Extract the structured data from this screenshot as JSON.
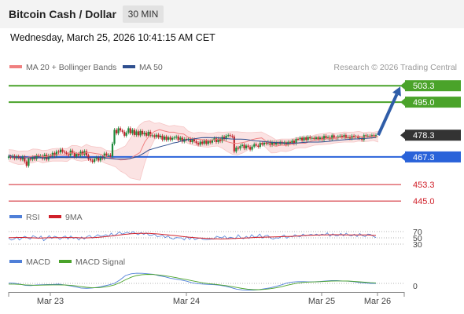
{
  "header": {
    "title": "Bitcoin Cash / Dollar",
    "timeframe": "30 MIN"
  },
  "datetime": "Wednesday, March 25, 2026 10:41:15 AM CET",
  "legend": {
    "ma20_label": "MA 20 + Bollinger Bands",
    "ma50_label": "MA 50",
    "credit": "Research © 2026 Trading Central",
    "rsi_label": "RSI",
    "rsi_ma_label": "9MA",
    "macd_label": "MACD",
    "macd_signal_label": "MACD Signal"
  },
  "colors": {
    "ma20": "#f08080",
    "ma50": "#2f4f8f",
    "bb_fill": "#fbe3e3",
    "bull_candle": "#1e8a3c",
    "bear_candle": "#c0262d",
    "target_line": "#4aa32a",
    "pivot_line": "#2962d9",
    "support_line": "#e8828a",
    "arrow": "#2f5da8",
    "rsi": "#4f7fd8",
    "rsi_ma": "#d0202a",
    "macd": "#4f7fd8",
    "macd_signal": "#4aa32a",
    "current_price_badge": "#333333"
  },
  "chart_data": [
    {
      "type": "candlestick",
      "title": "Bitcoin Cash / Dollar",
      "interval": "30 MIN",
      "x_ticks": [
        "Mar 23",
        "Mar 24",
        "Mar 25",
        "Mar 26"
      ],
      "ylim": [
        440,
        508
      ],
      "price_levels": [
        {
          "value": 503.3,
          "label": "503.3",
          "role": "target",
          "color": "#4aa32a"
        },
        {
          "value": 495.0,
          "label": "495.0",
          "role": "target",
          "color": "#4aa32a"
        },
        {
          "value": 478.3,
          "label": "478.3",
          "role": "current",
          "color": "#333333"
        },
        {
          "value": 467.3,
          "label": "467.3",
          "role": "pivot",
          "color": "#2962d9"
        },
        {
          "value": 453.3,
          "label": "453.3",
          "role": "support",
          "color": "#d0202a"
        },
        {
          "value": 445.0,
          "label": "445.0",
          "role": "support",
          "color": "#d0202a"
        }
      ],
      "close": [
        467.5,
        467.0,
        467.8,
        466.5,
        467.6,
        466.9,
        466.0,
        467.4,
        465.0,
        462.8,
        466.5,
        466.0,
        467.2,
        466.2,
        468.0,
        467.5,
        467.8,
        466.4,
        468.4,
        466.0,
        468.0,
        467.5,
        469.3,
        467.9,
        470.0,
        469.6,
        471.0,
        469.9,
        469.5,
        468.8,
        468.0,
        470.5,
        469.2,
        467.4,
        468.8,
        468.0,
        470.0,
        468.5,
        470.2,
        468.1,
        466.2,
        465.5,
        464.8,
        466.3,
        467.0,
        465.5,
        467.2,
        466.5,
        469.0,
        468.0,
        468.3,
        467.6,
        474.0,
        481.0,
        479.2,
        481.8,
        480.7,
        480.0,
        478.0,
        479.6,
        481.8,
        479.2,
        481.0,
        478.4,
        480.2,
        478.2,
        480.4,
        478.7,
        479.5,
        478.0,
        480.0,
        478.0,
        478.2,
        477.4,
        478.5,
        477.2,
        478.0,
        476.0,
        477.6,
        475.9,
        477.2,
        476.0,
        476.9,
        477.1,
        477.6,
        475.9,
        477.0,
        475.0,
        476.4,
        476.0,
        476.5,
        474.8,
        476.2,
        475.2,
        474.3,
        473.5,
        475.0,
        474.0,
        475.5,
        473.9,
        475.3,
        474.5,
        475.7,
        476.7,
        474.8,
        476.5,
        475.2,
        477.5,
        476.3,
        478.0,
        478.3,
        477.9,
        477.6,
        470.0,
        472.0,
        471.5,
        472.8,
        473.4,
        471.6,
        473.0,
        472.3,
        471.0,
        472.5,
        473.7,
        473.0,
        472.4,
        474.3,
        473.5,
        474.5,
        474.0,
        475.0,
        473.2,
        474.8,
        473.6,
        474.7,
        473.8,
        474.9,
        473.9,
        474.7,
        473.5,
        474.9,
        474.4,
        475.5,
        474.0,
        476.4,
        476.2,
        477.0,
        475.6,
        477.2,
        475.9,
        477.4,
        476.6,
        476.9,
        476.3,
        477.2,
        476.2,
        477.1,
        475.9,
        477.9,
        476.8,
        477.3,
        476.2,
        478.2,
        477.0,
        476.8,
        477.6,
        478.0,
        477.3,
        478.3,
        476.8,
        477.5,
        476.6,
        478.0,
        477.3,
        477.6,
        476.8,
        476.9,
        475.9,
        478.3,
        477.9,
        478.0,
        477.5,
        478.3,
        477.7,
        478.3
      ],
      "ma20": [
        468,
        467.3,
        466.8,
        466.9,
        467.2,
        467.7,
        468.1,
        467.3,
        467.6,
        468.2,
        468.4,
        468.3,
        468.2,
        469.7,
        469.2,
        468.7,
        469.6,
        469.4,
        468.9,
        468.6,
        467.3,
        466.8,
        466.3,
        465.8,
        465.9,
        466.4,
        468,
        469.5,
        474.9,
        478.3,
        480.2,
        481.1,
        480.4,
        479.8,
        479.8,
        479.1,
        478.9,
        477.1,
        476.4,
        476.2,
        476,
        475.7,
        475.9,
        476.3,
        475.7,
        474.9,
        474.3,
        474.1,
        474.5,
        475,
        476,
        476.6,
        476.9,
        475.2,
        473.4,
        472.7,
        473.3,
        473.1,
        473.5,
        474.2,
        474.3,
        474.2,
        475.1,
        475.8,
        476.1,
        476.4,
        476.8,
        476.7,
        477.1,
        477.3,
        477.3,
        477.3,
        477.8,
        477.3,
        477.5,
        477.7,
        477.5
      ],
      "ma50": [
        468.3,
        467.3,
        466.9,
        466.9,
        466.8,
        466.8,
        466.8,
        466.8,
        466.8,
        466.8,
        466.9,
        467,
        466.9,
        467,
        467,
        466.9,
        466.9,
        466.9,
        467,
        467,
        466.7,
        466.5,
        466.2,
        466.2,
        466.2,
        466.4,
        467,
        467.8,
        469.2,
        470.8,
        471.5,
        472.2,
        472.9,
        473.5,
        474.3,
        474.7,
        475.5,
        476,
        476.3,
        476.7,
        477,
        477.1,
        477,
        477,
        476.8,
        476.6,
        476.4,
        476.3,
        476.3,
        476.2,
        475.8,
        475.4,
        475.3,
        475,
        474.8,
        474.6,
        474.5,
        474.3,
        474.2,
        474.2,
        474.4,
        474.6,
        474.8,
        474.8,
        474.8,
        474.9,
        475.1,
        475.4,
        475.7,
        475.9,
        476.1,
        476.3,
        476.4,
        476.6,
        476.7,
        476.9,
        477.1
      ],
      "bb_upper": [
        471,
        470.8,
        470.1,
        470.3,
        470.4,
        471.3,
        471.2,
        470.5,
        470.8,
        471.4,
        471.6,
        471.5,
        471.5,
        473.1,
        473,
        472.2,
        473.6,
        472.6,
        472.3,
        472.1,
        470.7,
        470.3,
        470.5,
        471.6,
        472.8,
        476.6,
        480.5,
        483.6,
        485.3,
        485.6,
        484.3,
        484.5,
        483.7,
        482.8,
        483.3,
        482.8,
        482.5,
        480.2,
        479.4,
        479.7,
        479.6,
        479.1,
        479.3,
        479.9,
        479.8,
        479.9,
        480,
        480,
        479.8,
        479.6,
        479.6,
        479.8,
        479.9,
        478.7,
        477.4,
        475.9,
        476.3,
        476.3,
        476.4,
        476.8,
        476.7,
        476.4,
        477.5,
        478.4,
        478.9,
        479.2,
        479.7,
        479.1,
        479.6,
        479.9,
        479.8,
        479.9,
        480.2,
        479.6,
        479.9,
        479.8,
        480.2
      ],
      "bb_lower": [
        465.3,
        464.2,
        463.5,
        463.6,
        464.1,
        464.4,
        465.2,
        464.3,
        464.8,
        465.2,
        465.2,
        465.2,
        465,
        466.6,
        465.5,
        465.1,
        465.5,
        466.2,
        465.2,
        465.2,
        464,
        463.2,
        462.2,
        460.1,
        458.8,
        456.6,
        456.1,
        455.6,
        464.4,
        471.2,
        476.1,
        477.8,
        477,
        476.6,
        476.4,
        475.5,
        475.2,
        474,
        473.2,
        472.8,
        472.4,
        472.2,
        472.6,
        472.8,
        471.6,
        469.9,
        468.6,
        468.3,
        469.1,
        470.5,
        472.5,
        473.6,
        474,
        471.7,
        469.3,
        469.4,
        470.3,
        470,
        470.6,
        471.6,
        471.9,
        471.9,
        472.6,
        473.3,
        473.4,
        473.6,
        473.9,
        474.3,
        474.6,
        474.8,
        474.8,
        474.8,
        475.3,
        475,
        475.2,
        475.6,
        474.8
      ]
    },
    {
      "type": "line",
      "title": "RSI",
      "y_ticks": [
        70,
        50,
        30
      ],
      "ylim": [
        25,
        75
      ],
      "series": [
        {
          "name": "RSI",
          "values": [
            49,
            43,
            46,
            53,
            43,
            50,
            55,
            50,
            46,
            57,
            53,
            48,
            56,
            41,
            48,
            57,
            48,
            55,
            52,
            45,
            52,
            56,
            46,
            56,
            48,
            52,
            43,
            53,
            46,
            54,
            58,
            49,
            54,
            60,
            55,
            56,
            60,
            55,
            65,
            56,
            62,
            69,
            62,
            65,
            68,
            63,
            70,
            64,
            60,
            67,
            61,
            66,
            58,
            58,
            62,
            54,
            55,
            58,
            51,
            56,
            49,
            46,
            51,
            50,
            50,
            43,
            54,
            45,
            53,
            44,
            48,
            50,
            45,
            44,
            45,
            46,
            46,
            55,
            52,
            50,
            56,
            47,
            52,
            50,
            47,
            60,
            50,
            47,
            55,
            48,
            60,
            52,
            53,
            62,
            49,
            57,
            58,
            49,
            46,
            50,
            49,
            54,
            59,
            49,
            55,
            53,
            60,
            55,
            54,
            62,
            56,
            59,
            61,
            58,
            62,
            57,
            62,
            59,
            66,
            55,
            63,
            57,
            57,
            64,
            56,
            65,
            58,
            56,
            62,
            54,
            64,
            57,
            54,
            62,
            61,
            55,
            51
          ]
        },
        {
          "name": "9MA",
          "values": [
            50.5,
            50.8,
            51.1,
            51.3,
            51.2,
            50.8,
            50.3,
            49.9,
            49.5,
            49.4,
            49.9,
            50.3,
            50.7,
            50.8,
            50.7,
            50.7,
            50.9,
            51,
            50.8,
            50.4,
            50,
            49.8,
            50,
            50.5,
            51.1,
            51.9,
            52.8,
            53.9,
            55.2,
            56.6,
            58.1,
            59.6,
            60.9,
            62.1,
            63.1,
            63.8,
            64.4,
            64.6,
            64.5,
            64.2,
            63.6,
            62.8,
            61.8,
            60.8,
            59.7,
            58.6,
            57.4,
            56.2,
            54.8,
            53.5,
            52.3,
            51.2,
            50.3,
            49.6,
            49,
            48.3,
            47.6,
            47.1,
            46.7,
            46.6,
            46.8,
            47.3,
            47.8,
            48.3,
            48.8,
            49.3,
            49.7,
            50.2,
            50.9,
            51.5,
            51.9,
            52.2,
            52.4,
            52.7,
            53.1,
            53.6,
            54,
            54.3,
            54.6,
            55.1,
            55.8,
            56.5,
            57.3,
            57.9,
            58.3,
            58.7,
            59,
            59.3,
            59.6,
            59.8,
            59.9,
            59.9,
            59.8,
            59.7,
            59.6,
            59.5,
            59.5,
            59.6,
            59.6,
            59.4,
            58.9,
            58.3,
            57.7
          ]
        }
      ]
    },
    {
      "type": "line",
      "title": "MACD",
      "y_ticks": [
        0
      ],
      "series": [
        {
          "name": "MACD",
          "values": [
            0.2,
            0.1,
            -0.5,
            -1.4,
            -1.5,
            -1.1,
            -0.9,
            -0.8,
            -0.7,
            -0.5,
            -1.0,
            -1.6,
            -2.4,
            -3.2,
            -3.4,
            -3.2,
            -2.7,
            -1.9,
            -1.0,
            0.0,
            2.4,
            5.4,
            6.6,
            7.0,
            6.9,
            6.6,
            6.2,
            5.3,
            4.6,
            3.6,
            2.9,
            2.3,
            1.5,
            0.4,
            -0.2,
            -0.5,
            -0.7,
            -0.9,
            -1.3,
            -2.0,
            -2.9,
            -4.0,
            -4.5,
            -4.6,
            -4.6,
            -4.3,
            -3.7,
            -3.1,
            -2.1,
            -1.0,
            0.2,
            0.9,
            1.2,
            1.2,
            1.0,
            1.1,
            1.3,
            1.6,
            1.9,
            1.9,
            1.7,
            1.5,
            1.2,
            0.6,
            0.3,
            0.0,
            0.0
          ]
        },
        {
          "name": "MACD Signal",
          "values": [
            -0.5,
            -0.5,
            -0.7,
            -1.0,
            -1.2,
            -1.3,
            -1.2,
            -1.1,
            -1.0,
            -1.0,
            -1.1,
            -1.3,
            -1.7,
            -2.2,
            -2.7,
            -3.0,
            -3.0,
            -2.6,
            -2.0,
            -1.0,
            0.5,
            2.5,
            4.2,
            5.4,
            6.0,
            6.2,
            6.1,
            5.8,
            5.3,
            4.7,
            4.0,
            3.3,
            2.6,
            1.8,
            1.0,
            0.3,
            -0.2,
            -0.6,
            -1.0,
            -1.5,
            -2.1,
            -2.8,
            -3.5,
            -4.0,
            -4.3,
            -4.3,
            -4.1,
            -3.7,
            -3.1,
            -2.3,
            -1.3,
            -0.5,
            0.2,
            0.7,
            0.9,
            1.0,
            1.2,
            1.4,
            1.6,
            1.7,
            1.7,
            1.6,
            1.4,
            1.1,
            0.8,
            0.5,
            0.3
          ]
        }
      ]
    }
  ]
}
